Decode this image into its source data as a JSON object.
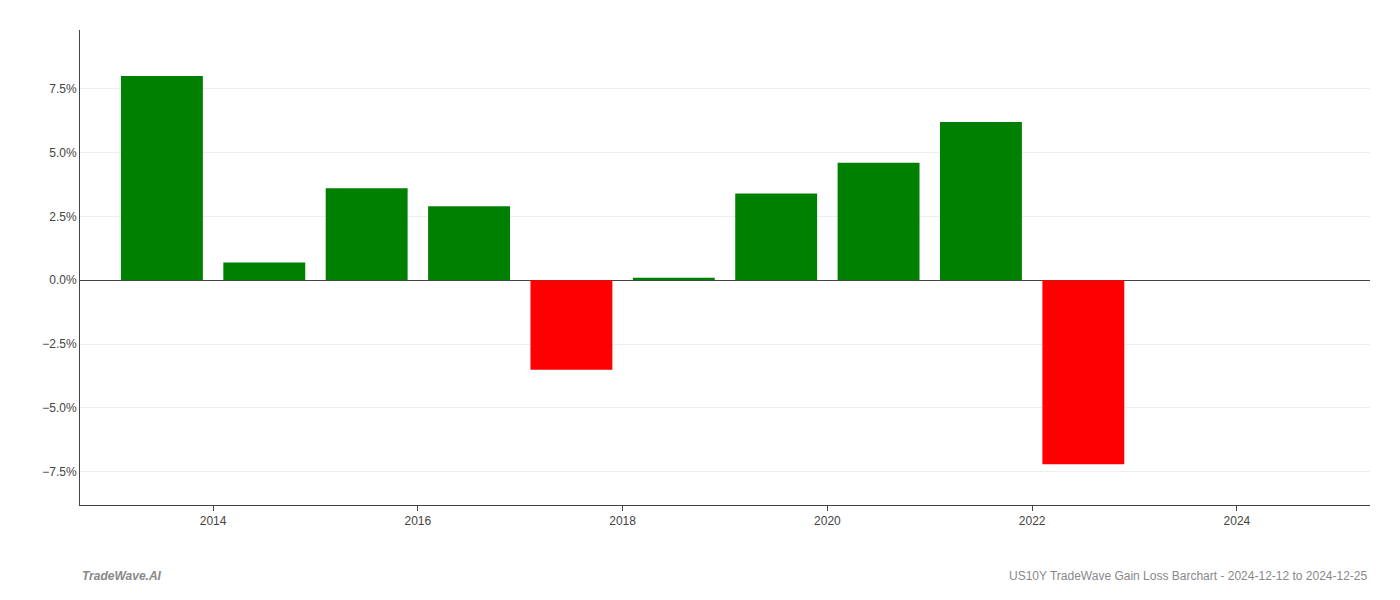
{
  "chart_data": {
    "type": "bar",
    "x": [
      2013.5,
      2014.5,
      2015.5,
      2016.5,
      2017.5,
      2018.5,
      2019.5,
      2020.5,
      2021.5,
      2022.5,
      2023.5
    ],
    "values": [
      8.0,
      0.7,
      3.6,
      2.9,
      -3.5,
      0.1,
      3.4,
      4.6,
      6.2,
      -7.2,
      0.0
    ],
    "colors": [
      "#008000",
      "#008000",
      "#008000",
      "#008000",
      "#ff0000",
      "#008000",
      "#008000",
      "#008000",
      "#008000",
      "#ff0000",
      "#ffffff"
    ],
    "xlim": [
      2012.7,
      2025.3
    ],
    "xticks": [
      2014,
      2016,
      2018,
      2020,
      2022,
      2024
    ],
    "ylim": [
      -8.8,
      9.8
    ],
    "yticks": [
      {
        "value": -7.5,
        "label": "−7.5%"
      },
      {
        "value": -5.0,
        "label": "−5.0%"
      },
      {
        "value": -2.5,
        "label": "−2.5%"
      },
      {
        "value": 0.0,
        "label": "0.0%"
      },
      {
        "value": 2.5,
        "label": "2.5%"
      },
      {
        "value": 5.0,
        "label": "5.0%"
      },
      {
        "value": 7.5,
        "label": "7.5%"
      }
    ],
    "grid": true,
    "annotations": [
      "TradeWave.AI",
      "US10Y TradeWave Gain Loss Barchart - 2024-12-12 to 2024-12-25"
    ]
  }
}
